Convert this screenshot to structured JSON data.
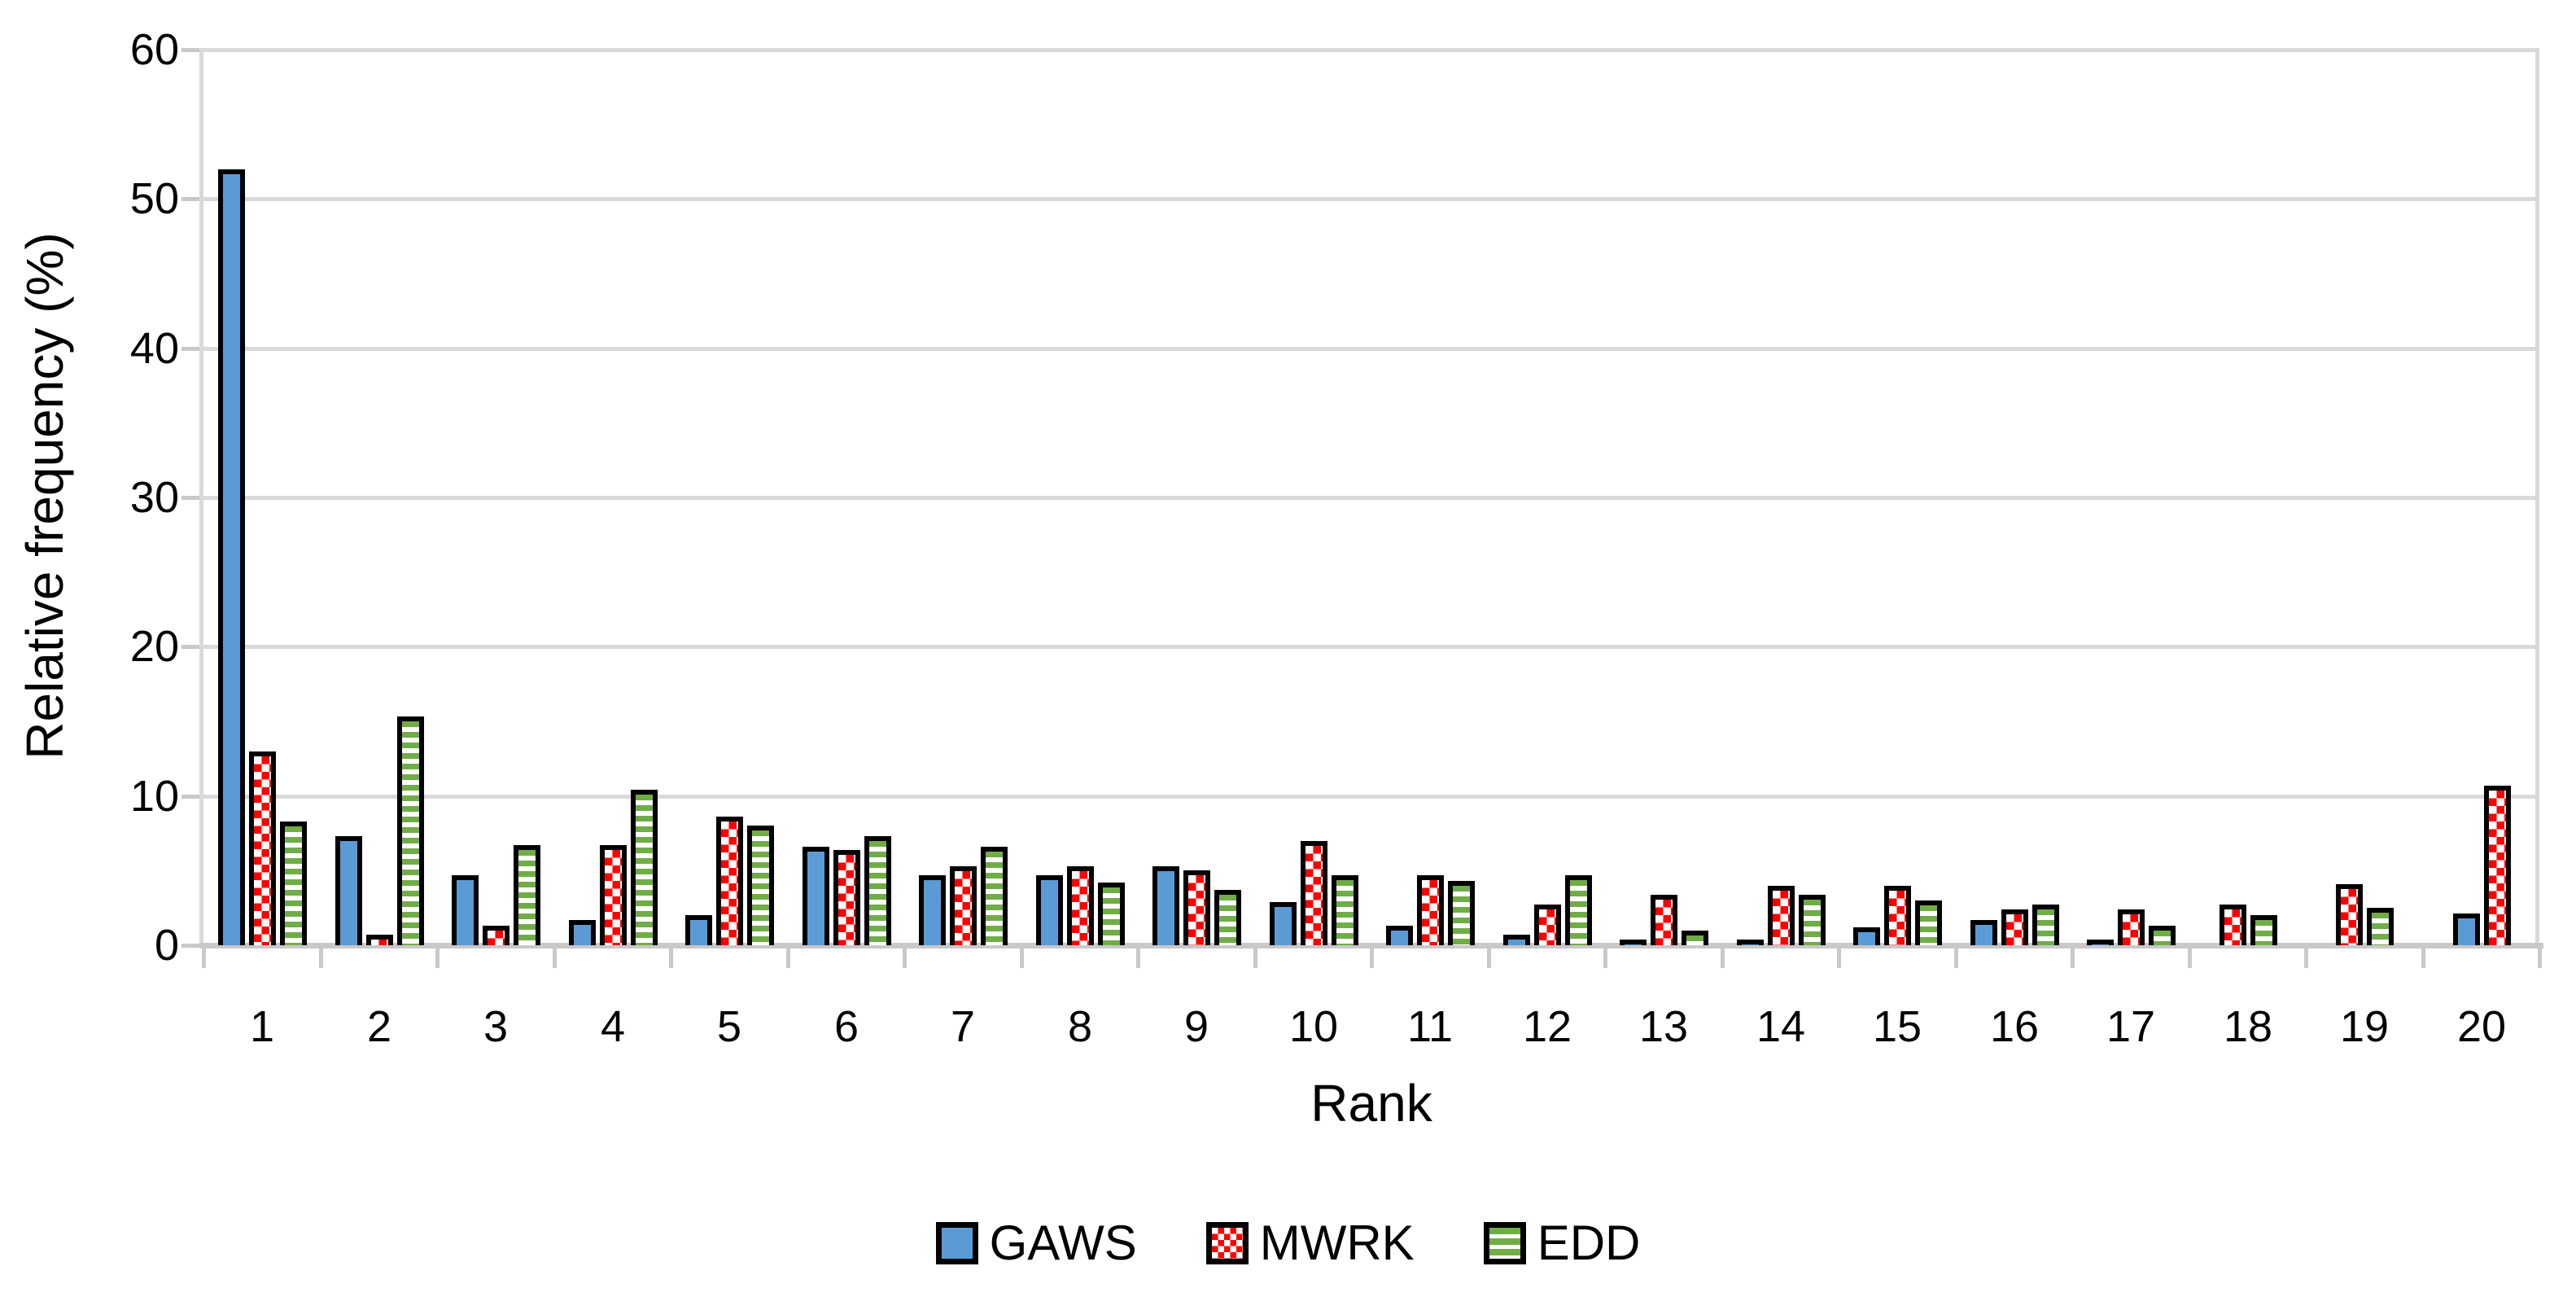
{
  "chart_data": {
    "type": "bar",
    "title": "",
    "xlabel": "Rank",
    "ylabel": "Relative frequency (%)",
    "ylim": [
      0,
      60
    ],
    "yticks": [
      0,
      10,
      20,
      30,
      40,
      50,
      60
    ],
    "grid": "horizontal",
    "legend_position": "bottom",
    "categories": [
      "1",
      "2",
      "3",
      "4",
      "5",
      "6",
      "7",
      "8",
      "9",
      "10",
      "11",
      "12",
      "13",
      "14",
      "15",
      "16",
      "17",
      "18",
      "19",
      "20"
    ],
    "series": [
      {
        "name": "GAWS",
        "pattern": "solid",
        "color": "#5B9BD5",
        "border_color": "#000000",
        "values": [
          52.0,
          7.3,
          4.7,
          1.7,
          2.0,
          6.6,
          4.7,
          4.7,
          5.3,
          2.9,
          1.3,
          0.7,
          0.4,
          0.4,
          1.2,
          1.7,
          0.4,
          0.0,
          0.0,
          2.1
        ]
      },
      {
        "name": "MWRK",
        "pattern": "red-checkerboard",
        "color": "#FF0000",
        "background": "#FFFFFF",
        "border_color": "#000000",
        "values": [
          13.0,
          0.7,
          1.3,
          6.7,
          8.6,
          6.4,
          5.3,
          5.3,
          5.0,
          7.0,
          4.7,
          2.7,
          3.4,
          4.0,
          4.0,
          2.4,
          2.4,
          2.7,
          4.1,
          10.7
        ]
      },
      {
        "name": "EDD",
        "pattern": "green-horizontal-stripes",
        "color": "#70AD47",
        "background": "#FFFFFF",
        "border_color": "#000000",
        "values": [
          8.3,
          15.3,
          6.7,
          10.4,
          8.0,
          7.3,
          6.6,
          4.2,
          3.7,
          4.7,
          4.3,
          4.7,
          1.0,
          3.4,
          3.0,
          2.7,
          1.3,
          2.0,
          2.5,
          0.0
        ]
      }
    ],
    "colors": {
      "gridline": "#D9D9D9",
      "axis_line": "#C9C9C9",
      "text": "#000000",
      "plot_background": "#FFFFFF"
    }
  }
}
